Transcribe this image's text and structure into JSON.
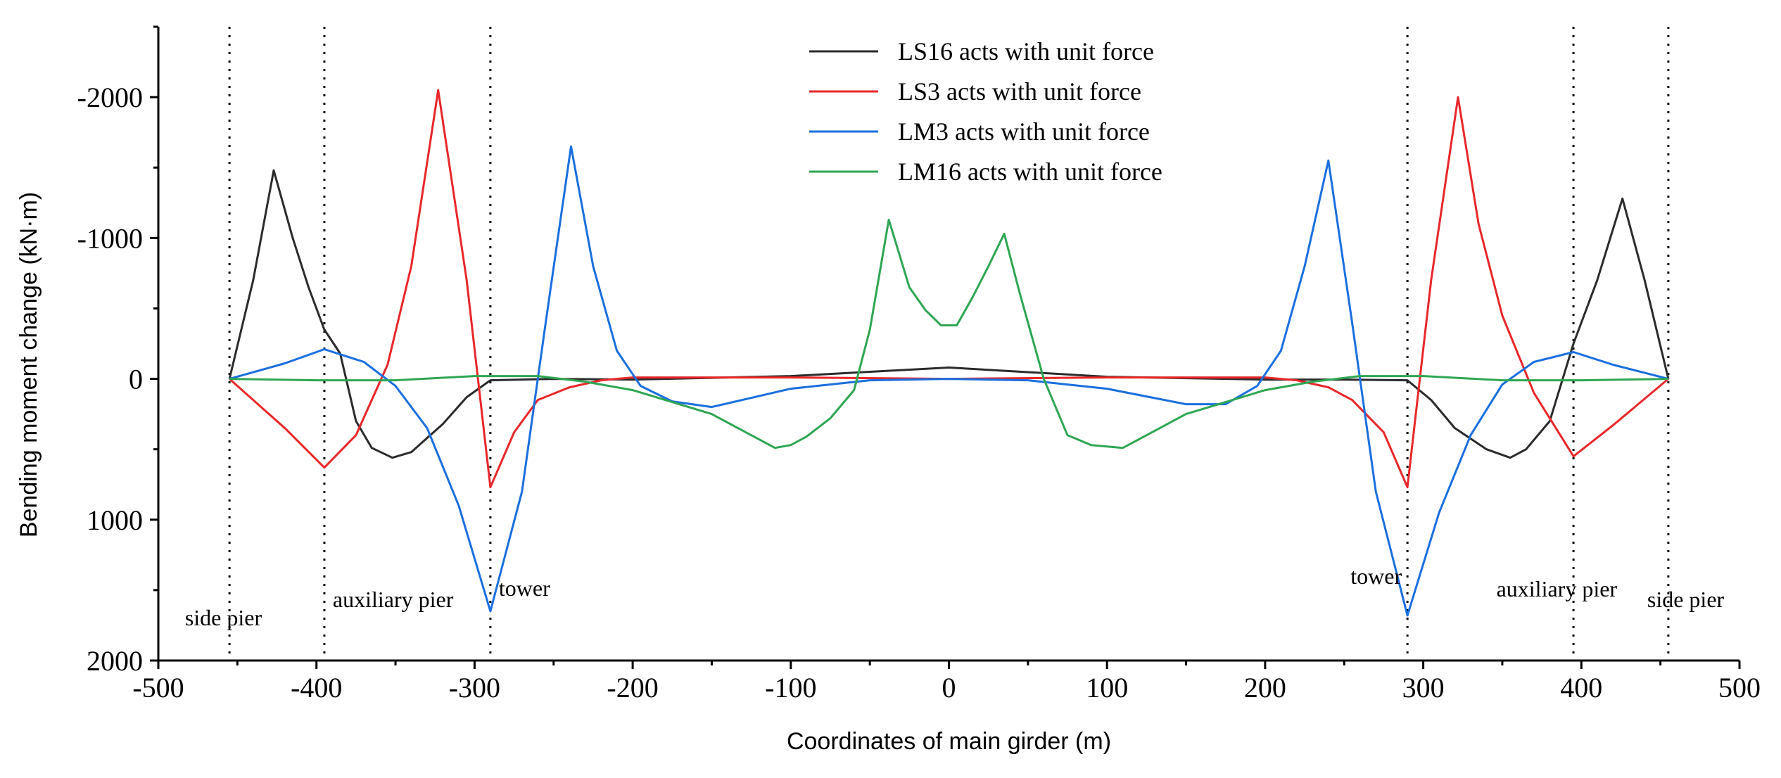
{
  "chart_data": {
    "type": "line",
    "title": "",
    "xlabel": "Coordinates of main girder (m)",
    "ylabel": "Bending moment change (kN·m)",
    "xlim": [
      -500,
      500
    ],
    "ylim": [
      -2500,
      2000
    ],
    "y_inverted": true,
    "grid": false,
    "legend_position": "top-center",
    "xticks": [
      -500,
      -400,
      -300,
      -200,
      -100,
      0,
      100,
      200,
      300,
      400,
      500
    ],
    "xtick_labels": [
      "-500",
      "-400",
      "-300",
      "-200",
      "-100",
      "0",
      "100",
      "200",
      "300",
      "400",
      "500"
    ],
    "yticks": [
      -2000,
      -1000,
      0,
      1000,
      2000
    ],
    "ytick_labels": [
      "-2000",
      "-1000",
      "0",
      "1000",
      "2000"
    ],
    "supports": [
      {
        "x": -455,
        "label": "side pier",
        "label_side": "left"
      },
      {
        "x": -395,
        "label": "auxiliary pier",
        "label_side": "right"
      },
      {
        "x": -290,
        "label": "tower",
        "label_side": "right"
      },
      {
        "x": 290,
        "label": "tower",
        "label_side": "left"
      },
      {
        "x": 395,
        "label": "auxiliary pier",
        "label_side": "left"
      },
      {
        "x": 455,
        "label": "side pier",
        "label_side": "left"
      }
    ],
    "series": [
      {
        "name": "LS16 acts with unit force",
        "color": "#2b2b2b",
        "x": [
          -455,
          -440,
          -427,
          -415,
          -405,
          -395,
          -385,
          -375,
          -365,
          -352,
          -340,
          -320,
          -305,
          -290,
          -250,
          -200,
          -100,
          0,
          100,
          200,
          250,
          290,
          305,
          320,
          340,
          355,
          365,
          380,
          395,
          410,
          426,
          440,
          455
        ],
        "y": [
          0,
          -700,
          -1480,
          -1000,
          -650,
          -350,
          -180,
          300,
          490,
          560,
          520,
          320,
          130,
          10,
          0,
          5,
          -20,
          -80,
          -15,
          5,
          5,
          10,
          150,
          350,
          500,
          560,
          500,
          300,
          -250,
          -700,
          -1280,
          -700,
          0
        ]
      },
      {
        "name": "LS3 acts with unit force",
        "color": "#e8272a",
        "x": [
          -455,
          -420,
          -395,
          -375,
          -355,
          -340,
          -323,
          -305,
          -290,
          -275,
          -260,
          -240,
          -220,
          -200,
          -100,
          0,
          100,
          200,
          220,
          240,
          255,
          275,
          290,
          305,
          322,
          335,
          350,
          370,
          395,
          420,
          455
        ],
        "y": [
          0,
          350,
          630,
          400,
          -100,
          -800,
          -2050,
          -700,
          770,
          380,
          150,
          60,
          10,
          -10,
          -10,
          0,
          -10,
          -10,
          10,
          60,
          150,
          380,
          770,
          -700,
          -2000,
          -1100,
          -450,
          100,
          550,
          330,
          0
        ]
      },
      {
        "name": "LM3 acts with unit force",
        "color": "#1a6fdf",
        "x": [
          -455,
          -420,
          -395,
          -370,
          -350,
          -330,
          -310,
          -290,
          -270,
          -255,
          -239,
          -225,
          -210,
          -195,
          -175,
          -150,
          -100,
          -50,
          0,
          50,
          100,
          150,
          175,
          195,
          210,
          225,
          240,
          255,
          270,
          290,
          310,
          330,
          350,
          370,
          395,
          420,
          455
        ],
        "y": [
          0,
          -110,
          -210,
          -120,
          50,
          350,
          900,
          1650,
          800,
          -400,
          -1650,
          -800,
          -200,
          50,
          160,
          200,
          70,
          10,
          0,
          10,
          70,
          180,
          180,
          50,
          -200,
          -800,
          -1550,
          -400,
          800,
          1680,
          950,
          400,
          40,
          -120,
          -190,
          -100,
          0
        ]
      },
      {
        "name": "LM16 acts with unit force",
        "color": "#2ea653",
        "x": [
          -455,
          -400,
          -350,
          -300,
          -260,
          -230,
          -200,
          -150,
          -110,
          -100,
          -90,
          -75,
          -60,
          -50,
          -38,
          -25,
          -15,
          -5,
          5,
          15,
          25,
          35,
          45,
          60,
          75,
          90,
          110,
          150,
          200,
          230,
          260,
          300,
          350,
          400,
          455
        ],
        "y": [
          0,
          10,
          10,
          -20,
          -20,
          20,
          80,
          250,
          490,
          470,
          410,
          280,
          80,
          -350,
          -1130,
          -650,
          -490,
          -380,
          -380,
          -580,
          -800,
          -1030,
          -600,
          0,
          400,
          470,
          490,
          250,
          80,
          20,
          -20,
          -20,
          10,
          10,
          0
        ]
      }
    ]
  }
}
